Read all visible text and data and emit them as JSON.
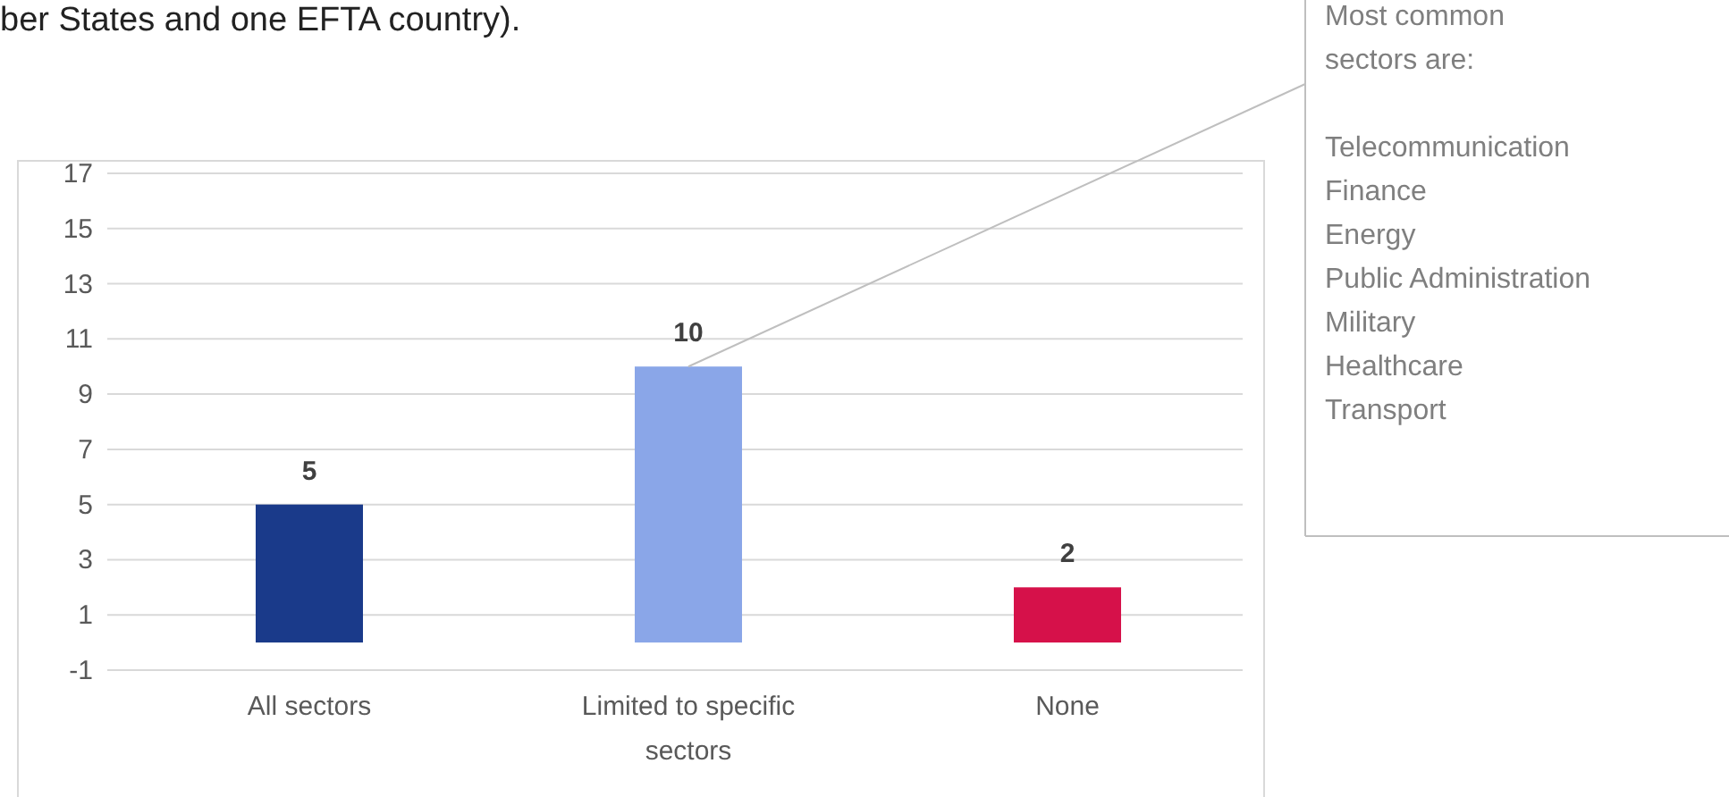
{
  "chart_data": {
    "type": "bar",
    "categories": [
      "All sectors",
      "Limited to specific sectors",
      "None"
    ],
    "values": [
      5,
      10,
      2
    ],
    "colors": [
      "#1a3a8a",
      "#8aa6e8",
      "#d6114a"
    ],
    "ylim": [
      -1,
      17
    ],
    "yticks": [
      -1,
      1,
      3,
      5,
      7,
      9,
      11,
      13,
      15,
      17
    ],
    "grid": "y",
    "data_labels": true,
    "annotations": [
      "ber States and one EFTA country).",
      {
        "text": "Most common sectors are:",
        "x": "Limited to specific sectors",
        "y": 10
      },
      "Telecommunication",
      "Finance",
      "Energy",
      "Public Administration",
      "Military",
      "Healthcare",
      "Transport"
    ]
  }
}
